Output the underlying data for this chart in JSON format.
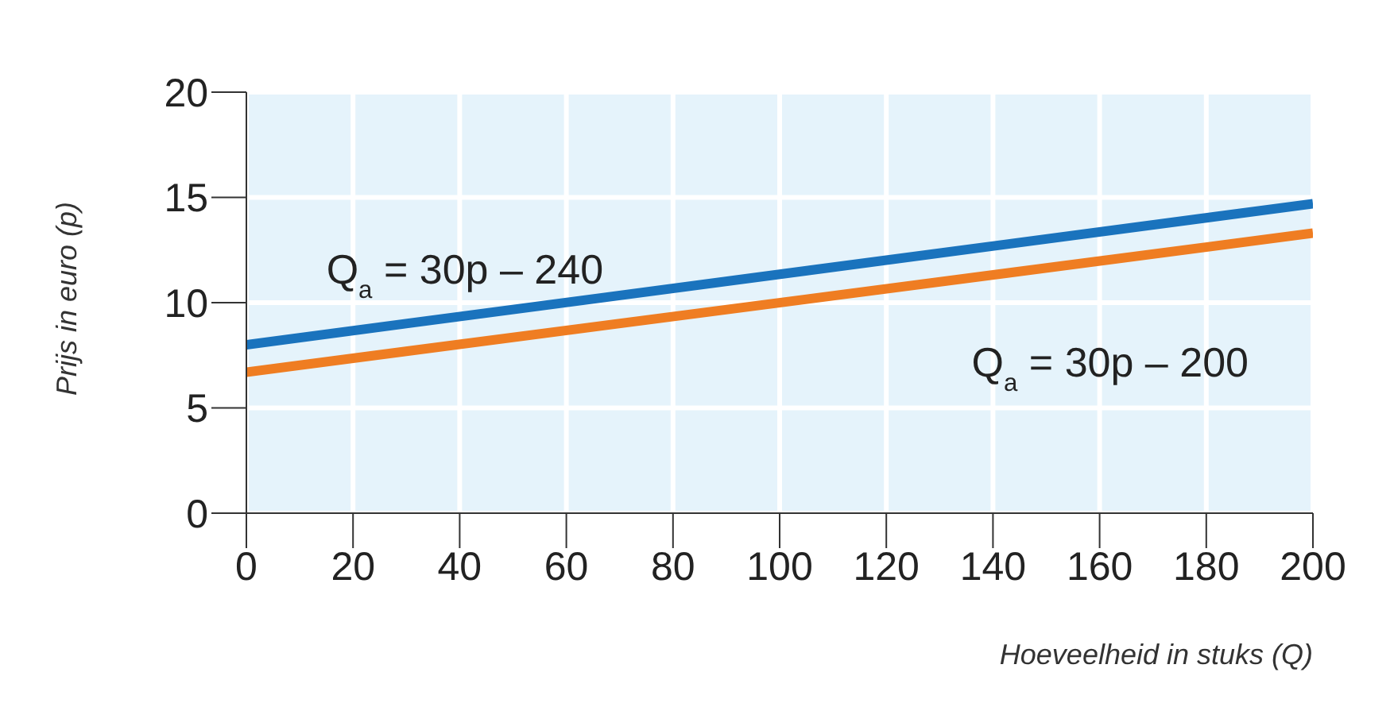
{
  "chart_data": {
    "type": "line",
    "xlabel": "Hoeveelheid in stuks (Q)",
    "ylabel": "Prijs in euro (p)",
    "x": [
      0,
      200
    ],
    "series": [
      {
        "name": "Q$_{a}$ = 30p – 240",
        "color": "#1a73bd",
        "values": [
          8,
          14.7
        ]
      },
      {
        "name": "Q$_{a}$ = 30p – 200",
        "color": "#ef7d22",
        "values": [
          6.7,
          13.3
        ]
      }
    ],
    "xlim": [
      0,
      200
    ],
    "xticks": [
      0,
      20,
      40,
      60,
      80,
      100,
      120,
      140,
      160,
      180,
      200
    ],
    "ylim": [
      0,
      20
    ],
    "yticks": [
      0,
      5,
      10,
      15,
      20
    ],
    "grid": true,
    "legend": false,
    "marker": "none",
    "line_style": "solid"
  }
}
